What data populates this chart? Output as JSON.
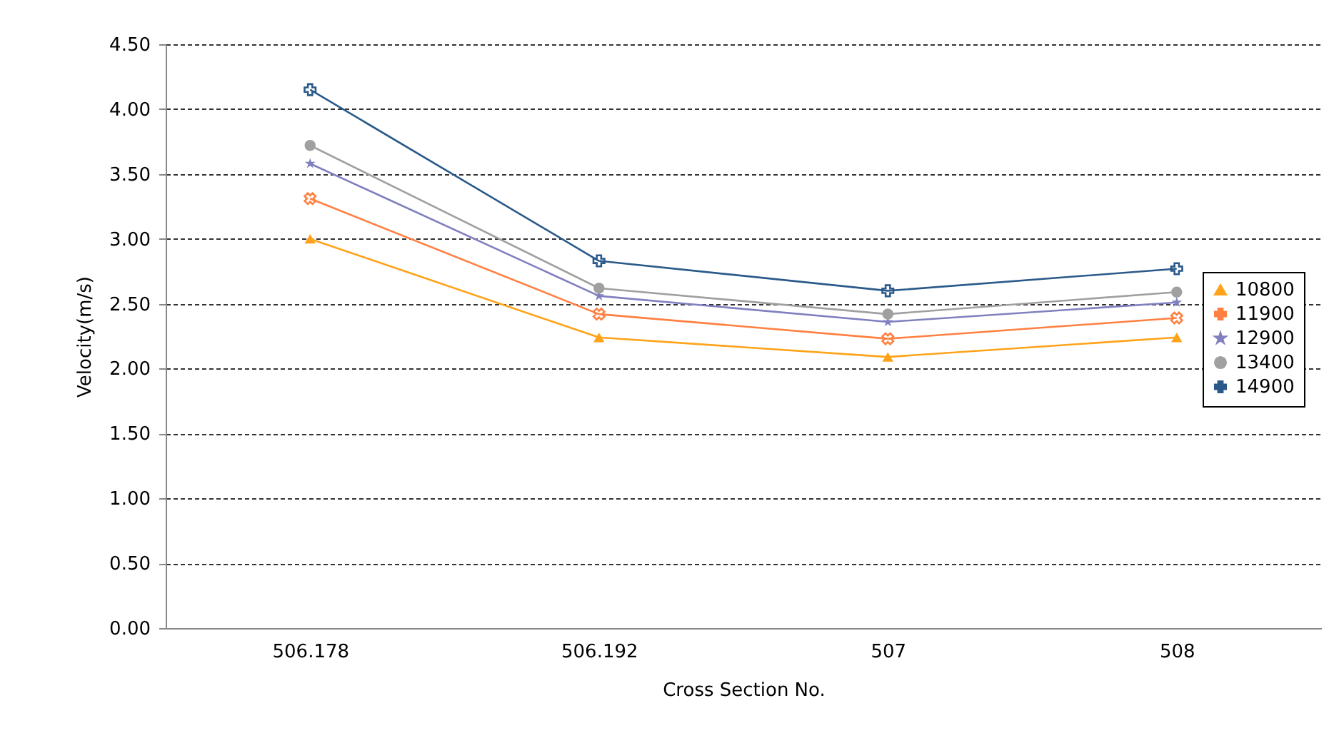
{
  "chart_data": {
    "type": "line",
    "xlabel": "Cross Section No.",
    "ylabel": "Velocity(m/s)",
    "categories": [
      "506.178",
      "506.192",
      "507",
      "508"
    ],
    "ylim": [
      0,
      4.5
    ],
    "yticks": [
      {
        "value": 0,
        "label": "0.00"
      },
      {
        "value": 0.5,
        "label": "0.50"
      },
      {
        "value": 1,
        "label": "1.00"
      },
      {
        "value": 1.5,
        "label": "1.50"
      },
      {
        "value": 2,
        "label": "2.00"
      },
      {
        "value": 2.5,
        "label": "2.50"
      },
      {
        "value": 3,
        "label": "3.00"
      },
      {
        "value": 3.5,
        "label": "3.50"
      },
      {
        "value": 4,
        "label": "4.00"
      },
      {
        "value": 4.5,
        "label": "4.50"
      }
    ],
    "grid": "y",
    "legend": "right",
    "line_style": "solid",
    "series": [
      {
        "name": "10800",
        "color": "#ffa31a",
        "marker": "triangle",
        "values": [
          3.0,
          2.24,
          2.09,
          2.24
        ]
      },
      {
        "name": "11900",
        "color": "#ff8040",
        "marker": "cross",
        "values": [
          3.31,
          2.42,
          2.23,
          2.39
        ]
      },
      {
        "name": "12900",
        "color": "#8080c0",
        "marker": "star",
        "values": [
          3.58,
          2.56,
          2.36,
          2.51
        ]
      },
      {
        "name": "13400",
        "color": "#a0a0a0",
        "marker": "circle",
        "values": [
          3.72,
          2.62,
          2.42,
          2.59
        ]
      },
      {
        "name": "14900",
        "color": "#2a5a8a",
        "marker": "plus",
        "values": [
          4.15,
          2.83,
          2.6,
          2.77
        ]
      }
    ]
  }
}
